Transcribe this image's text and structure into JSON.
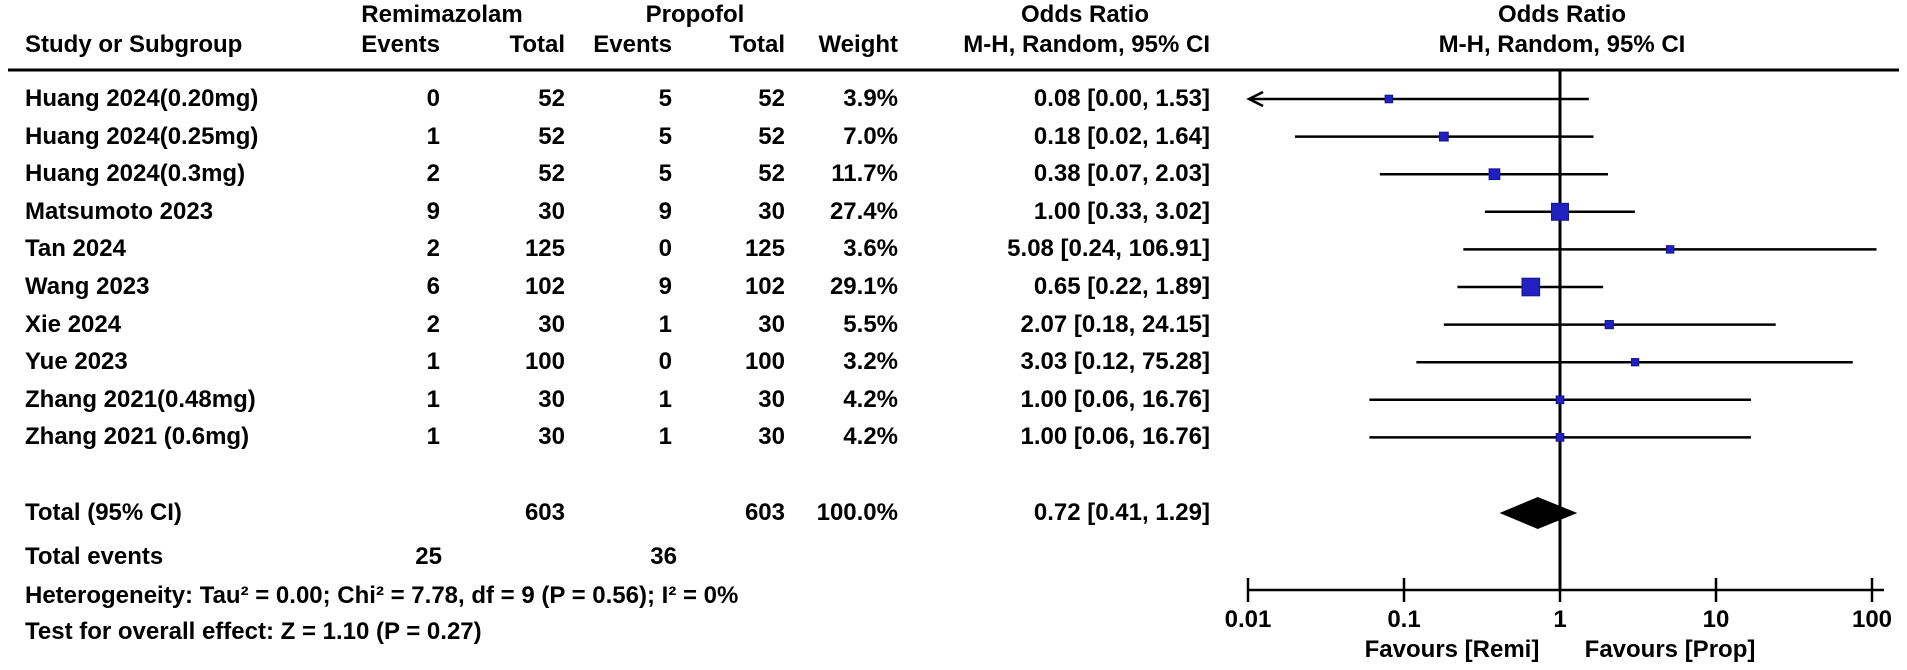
{
  "headers": {
    "group1": "Remimazolam",
    "group2": "Propofol",
    "or_text_col": "Odds Ratio",
    "or_plot_col": "Odds Ratio",
    "study": "Study or Subgroup",
    "events1": "Events",
    "total1": "Total",
    "events2": "Events",
    "total2": "Total",
    "weight": "Weight",
    "mh_text_col": "M-H, Random, 95% CI",
    "mh_plot_col": "M-H, Random, 95% CI"
  },
  "chart_data": {
    "type": "forest",
    "effect_measure": "Odds Ratio",
    "method": "M-H, Random, 95% CI",
    "scale": "log10",
    "xlim": [
      0.01,
      100
    ],
    "axis_ticks": [
      "0.01",
      "0.1",
      "1",
      "10",
      "100"
    ],
    "axis_tick_values": [
      0.01,
      0.1,
      1,
      10,
      100
    ],
    "favours_left": "Favours [Remi]",
    "favours_right": "Favours [Prop]",
    "marker_color": "#2121c2",
    "diamond_color": "#000000",
    "studies": [
      {
        "name": "Huang 2024(0.20mg)",
        "events1": "0",
        "total1": "52",
        "events2": "5",
        "total2": "52",
        "weight": "3.9%",
        "weight_pct": 3.9,
        "or_label": "0.08 [0.00, 1.53]",
        "or": 0.08,
        "ci_lo": 0.0,
        "ci_hi": 1.53,
        "arrow_left": true
      },
      {
        "name": "Huang 2024(0.25mg)",
        "events1": "1",
        "total1": "52",
        "events2": "5",
        "total2": "52",
        "weight": "7.0%",
        "weight_pct": 7.0,
        "or_label": "0.18 [0.02, 1.64]",
        "or": 0.18,
        "ci_lo": 0.02,
        "ci_hi": 1.64,
        "arrow_left": false
      },
      {
        "name": "Huang 2024(0.3mg)",
        "events1": "2",
        "total1": "52",
        "events2": "5",
        "total2": "52",
        "weight": "11.7%",
        "weight_pct": 11.7,
        "or_label": "0.38 [0.07, 2.03]",
        "or": 0.38,
        "ci_lo": 0.07,
        "ci_hi": 2.03,
        "arrow_left": false
      },
      {
        "name": "Matsumoto 2023",
        "events1": "9",
        "total1": "30",
        "events2": "9",
        "total2": "30",
        "weight": "27.4%",
        "weight_pct": 27.4,
        "or_label": "1.00 [0.33, 3.02]",
        "or": 1.0,
        "ci_lo": 0.33,
        "ci_hi": 3.02,
        "arrow_left": false
      },
      {
        "name": "Tan 2024",
        "events1": "2",
        "total1": "125",
        "events2": "0",
        "total2": "125",
        "weight": "3.6%",
        "weight_pct": 3.6,
        "or_label": "5.08 [0.24, 106.91]",
        "or": 5.08,
        "ci_lo": 0.24,
        "ci_hi": 106.91,
        "arrow_left": false
      },
      {
        "name": "Wang 2023",
        "events1": "6",
        "total1": "102",
        "events2": "9",
        "total2": "102",
        "weight": "29.1%",
        "weight_pct": 29.1,
        "or_label": "0.65 [0.22, 1.89]",
        "or": 0.65,
        "ci_lo": 0.22,
        "ci_hi": 1.89,
        "arrow_left": false
      },
      {
        "name": "Xie 2024",
        "events1": "2",
        "total1": "30",
        "events2": "1",
        "total2": "30",
        "weight": "5.5%",
        "weight_pct": 5.5,
        "or_label": "2.07 [0.18, 24.15]",
        "or": 2.07,
        "ci_lo": 0.18,
        "ci_hi": 24.15,
        "arrow_left": false
      },
      {
        "name": "Yue 2023",
        "events1": "1",
        "total1": "100",
        "events2": "0",
        "total2": "100",
        "weight": "3.2%",
        "weight_pct": 3.2,
        "or_label": "3.03 [0.12, 75.28]",
        "or": 3.03,
        "ci_lo": 0.12,
        "ci_hi": 75.28,
        "arrow_left": false
      },
      {
        "name": "Zhang 2021(0.48mg)",
        "events1": "1",
        "total1": "30",
        "events2": "1",
        "total2": "30",
        "weight": "4.2%",
        "weight_pct": 4.2,
        "or_label": "1.00 [0.06, 16.76]",
        "or": 1.0,
        "ci_lo": 0.06,
        "ci_hi": 16.76,
        "arrow_left": false
      },
      {
        "name": "Zhang 2021 (0.6mg)",
        "events1": "1",
        "total1": "30",
        "events2": "1",
        "total2": "30",
        "weight": "4.2%",
        "weight_pct": 4.2,
        "or_label": "1.00 [0.06, 16.76]",
        "or": 1.0,
        "ci_lo": 0.06,
        "ci_hi": 16.76,
        "arrow_left": false
      }
    ],
    "total": {
      "label": "Total (95% CI)",
      "total1": "603",
      "total2": "603",
      "weight": "100.0%",
      "or_label": "0.72 [0.41, 1.29]",
      "or": 0.72,
      "ci_lo": 0.41,
      "ci_hi": 1.29
    },
    "total_events": {
      "label": "Total events",
      "events1": "25",
      "events2": "36"
    }
  },
  "footer": {
    "heterogeneity": "Heterogeneity: Tau² = 0.00; Chi² = 7.78, df = 9 (P = 0.56); I² = 0%",
    "overall_effect": "Test for overall effect: Z = 1.10 (P = 0.27)"
  }
}
